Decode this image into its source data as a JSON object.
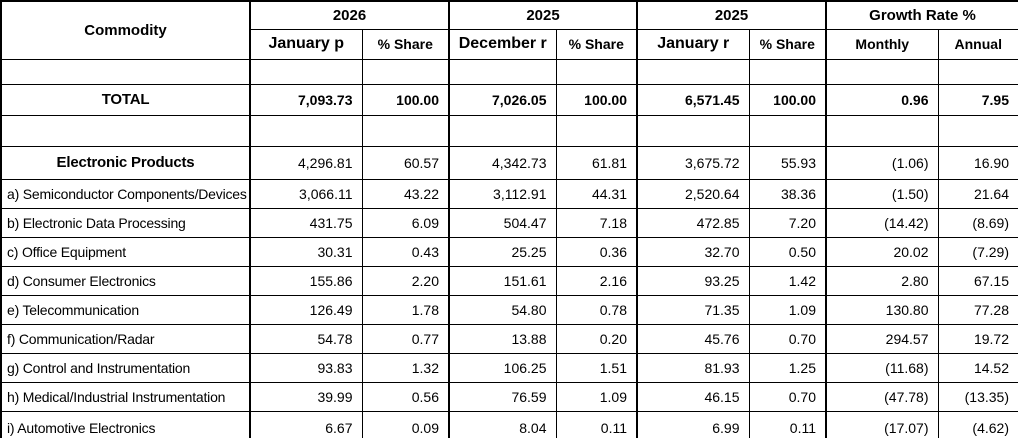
{
  "table": {
    "header": {
      "commodity": "Commodity",
      "groups": [
        {
          "year": "2026",
          "cols": [
            "January p",
            "% Share"
          ]
        },
        {
          "year": "2025",
          "cols": [
            "December r",
            "% Share"
          ]
        },
        {
          "year": "2025",
          "cols": [
            "January r",
            "% Share"
          ]
        },
        {
          "year": "Growth Rate %",
          "cols": [
            "Monthly",
            "Annual"
          ]
        }
      ]
    },
    "rows": [
      {
        "type": "spacer-sm",
        "label": "",
        "values": [
          "",
          "",
          "",
          "",
          "",
          "",
          "",
          ""
        ]
      },
      {
        "type": "total",
        "label": "TOTAL",
        "values": [
          "7,093.73",
          "100.00",
          "7,026.05",
          "100.00",
          "6,571.45",
          "100.00",
          "0.96",
          "7.95"
        ]
      },
      {
        "type": "spacer",
        "label": "",
        "values": [
          "",
          "",
          "",
          "",
          "",
          "",
          "",
          ""
        ]
      },
      {
        "type": "section",
        "label": "Electronic Products",
        "values": [
          "4,296.81",
          "60.57",
          "4,342.73",
          "61.81",
          "3,675.72",
          "55.93",
          "(1.06)",
          "16.90"
        ]
      },
      {
        "type": "data",
        "label": "a) Semiconductor Components/Devices",
        "values": [
          "3,066.11",
          "43.22",
          "3,112.91",
          "44.31",
          "2,520.64",
          "38.36",
          "(1.50)",
          "21.64"
        ]
      },
      {
        "type": "data",
        "label": "b) Electronic Data Processing",
        "values": [
          "431.75",
          "6.09",
          "504.47",
          "7.18",
          "472.85",
          "7.20",
          "(14.42)",
          "(8.69)"
        ]
      },
      {
        "type": "data",
        "label": "c) Office Equipment",
        "values": [
          "30.31",
          "0.43",
          "25.25",
          "0.36",
          "32.70",
          "0.50",
          "20.02",
          "(7.29)"
        ]
      },
      {
        "type": "data",
        "label": "d) Consumer Electronics",
        "values": [
          "155.86",
          "2.20",
          "151.61",
          "2.16",
          "93.25",
          "1.42",
          "2.80",
          "67.15"
        ]
      },
      {
        "type": "data",
        "label": "e) Telecommunication",
        "values": [
          "126.49",
          "1.78",
          "54.80",
          "0.78",
          "71.35",
          "1.09",
          "130.80",
          "77.28"
        ]
      },
      {
        "type": "data",
        "label": "f) Communication/Radar",
        "values": [
          "54.78",
          "0.77",
          "13.88",
          "0.20",
          "45.76",
          "0.70",
          "294.57",
          "19.72"
        ]
      },
      {
        "type": "data",
        "label": "g) Control and Instrumentation",
        "values": [
          "93.83",
          "1.32",
          "106.25",
          "1.51",
          "81.93",
          "1.25",
          "(11.68)",
          "14.52"
        ]
      },
      {
        "type": "data",
        "label": "h) Medical/Industrial Instrumentation",
        "values": [
          "39.99",
          "0.56",
          "76.59",
          "1.09",
          "46.15",
          "0.70",
          "(47.78)",
          "(13.35)"
        ]
      },
      {
        "type": "data",
        "label": "i) Automotive Electronics",
        "values": [
          "6.67",
          "0.09",
          "8.04",
          "0.11",
          "6.99",
          "0.11",
          "(17.07)",
          "(4.62)"
        ]
      }
    ]
  }
}
